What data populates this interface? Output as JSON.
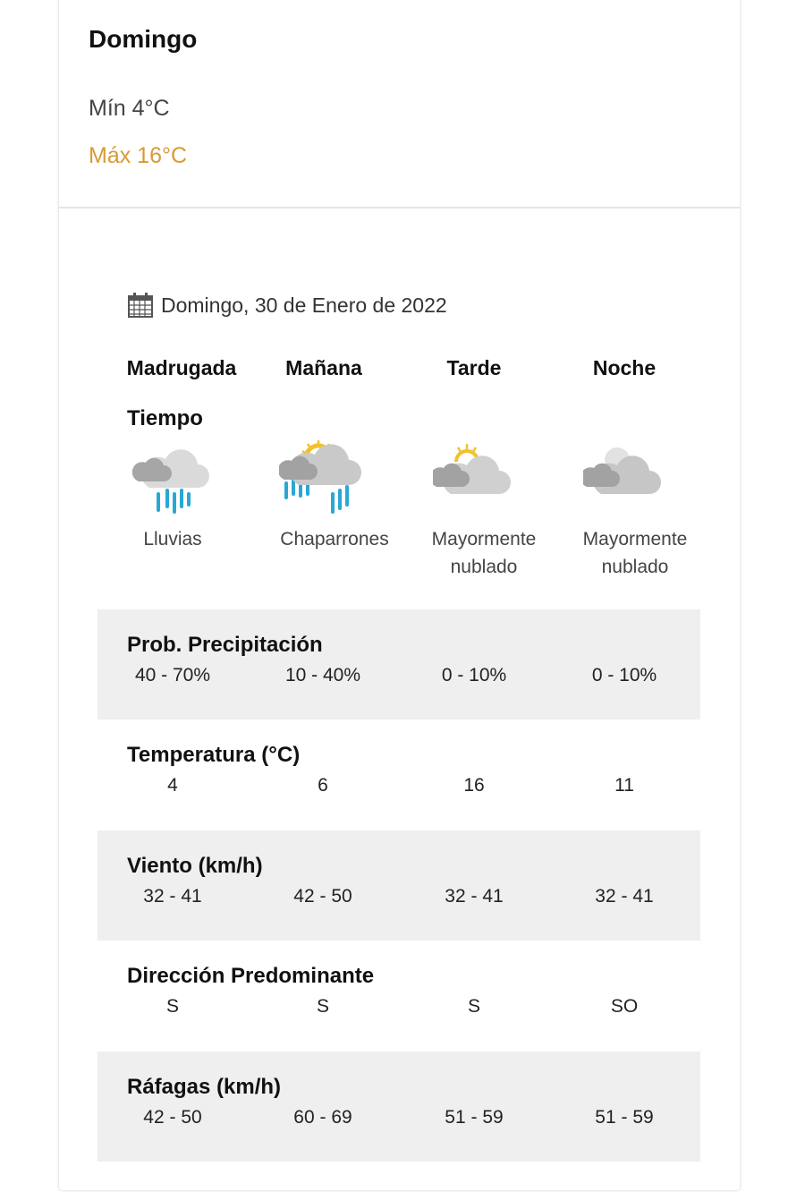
{
  "summary": {
    "day": "Domingo",
    "min": "Mín 4°C",
    "max": "Máx 16°C",
    "max_color": "#d89a35"
  },
  "date": {
    "icon": "calendar-icon",
    "text": "Domingo, 30 de Enero de 2022"
  },
  "periods": [
    "Madrugada",
    "Mañana",
    "Tarde",
    "Noche"
  ],
  "tiempo": {
    "label": "Tiempo",
    "items": [
      {
        "icon": "rain-cloud-icon",
        "desc": "Lluvias"
      },
      {
        "icon": "sun-showers-icon",
        "desc": "Chaparrones"
      },
      {
        "icon": "mostly-cloudy-day-icon",
        "desc": "Mayormente nublado"
      },
      {
        "icon": "mostly-cloudy-night-icon",
        "desc": "Mayormente nublado"
      }
    ]
  },
  "rows": [
    {
      "label": "Prob. Precipitación",
      "values": [
        "40 - 70%",
        "10 - 40%",
        "0 - 10%",
        "0 - 10%"
      ]
    },
    {
      "label": "Temperatura (°C)",
      "values": [
        "4",
        "6",
        "16",
        "11"
      ]
    },
    {
      "label": "Viento (km/h)",
      "values": [
        "32 - 41",
        "42 - 50",
        "32 - 41",
        "32 - 41"
      ]
    },
    {
      "label": "Dirección Predominante",
      "values": [
        "S",
        "S",
        "S",
        "SO"
      ]
    },
    {
      "label": "Ráfagas (km/h)",
      "values": [
        "42 - 50",
        "60 - 69",
        "51 - 59",
        "51 - 59"
      ]
    }
  ]
}
